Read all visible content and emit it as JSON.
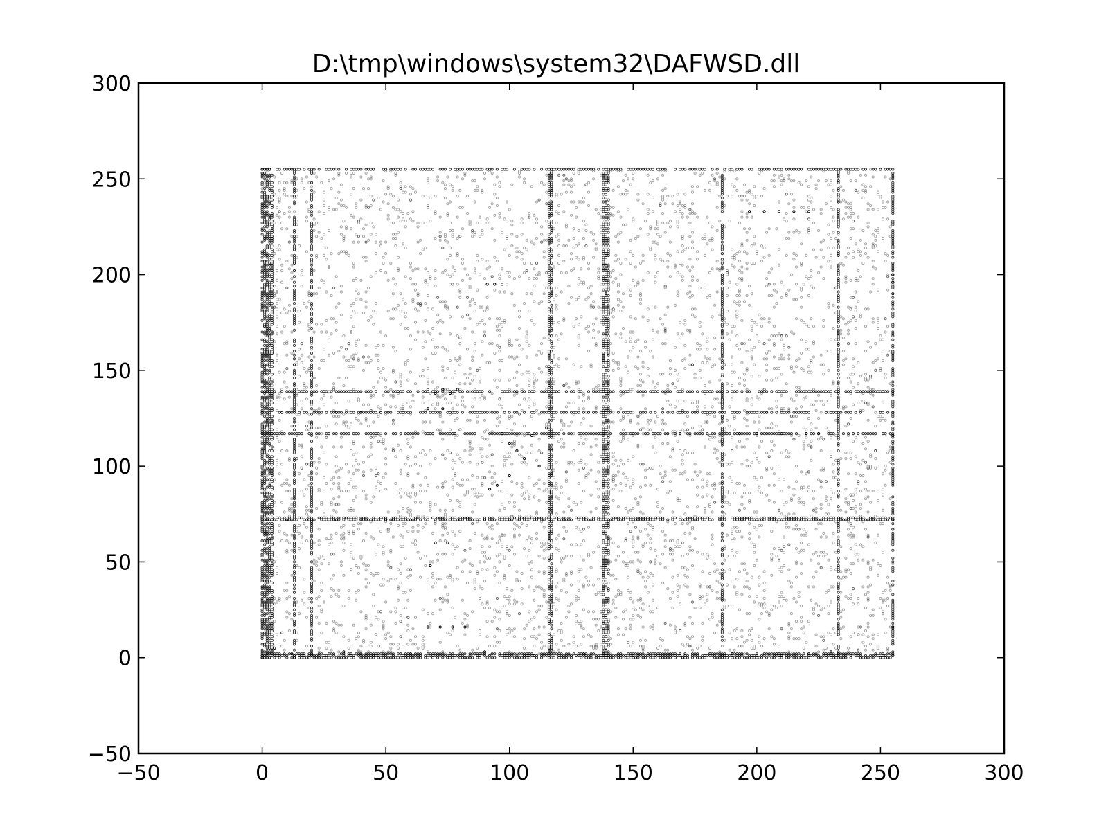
{
  "chart_data": {
    "type": "scatter",
    "title": "D:\\tmp\\windows\\system32\\DAFWSD.dll",
    "xlabel": "",
    "ylabel": "",
    "xlim": [
      -50,
      300
    ],
    "ylim": [
      -50,
      300
    ],
    "xticks": [
      -50,
      0,
      50,
      100,
      150,
      200,
      250,
      300
    ],
    "yticks": [
      -50,
      0,
      50,
      100,
      150,
      200,
      250,
      300
    ],
    "xtick_labels": [
      "−50",
      "0",
      "50",
      "100",
      "150",
      "200",
      "250",
      "300"
    ],
    "ytick_labels": [
      "−50",
      "0",
      "50",
      "100",
      "150",
      "200",
      "250",
      "300"
    ],
    "grid": false,
    "legend": "none",
    "marker_color": "#000000",
    "data_extent": {
      "x": [
        0,
        255
      ],
      "y": [
        0,
        255
      ]
    },
    "series": [
      {
        "name": "",
        "dense_rows_y": [
          0,
          1,
          2,
          72,
          73,
          128,
          139,
          117,
          255
        ],
        "dense_cols_x": [
          0,
          1,
          2,
          3,
          4,
          13,
          20,
          116,
          117,
          138,
          139,
          140,
          186,
          233,
          255
        ],
        "points": [
          [
            0,
            0
          ],
          [
            5,
            5
          ],
          [
            12,
            2
          ],
          [
            20,
            1
          ],
          [
            33,
            3
          ],
          [
            45,
            1
          ],
          [
            60,
            2
          ],
          [
            75,
            0
          ],
          [
            90,
            3
          ],
          [
            110,
            1
          ],
          [
            130,
            2
          ],
          [
            150,
            1
          ],
          [
            170,
            0
          ],
          [
            190,
            2
          ],
          [
            210,
            1
          ],
          [
            230,
            3
          ],
          [
            250,
            0
          ],
          [
            0,
            72
          ],
          [
            10,
            72
          ],
          [
            20,
            72
          ],
          [
            30,
            72
          ],
          [
            40,
            72
          ],
          [
            50,
            72
          ],
          [
            60,
            72
          ],
          [
            70,
            72
          ],
          [
            80,
            72
          ],
          [
            90,
            72
          ],
          [
            100,
            72
          ],
          [
            110,
            72
          ],
          [
            120,
            72
          ],
          [
            200,
            72
          ],
          [
            210,
            72
          ],
          [
            220,
            72
          ],
          [
            230,
            72
          ],
          [
            240,
            72
          ],
          [
            250,
            72
          ],
          [
            0,
            128
          ],
          [
            8,
            128
          ],
          [
            30,
            128
          ],
          [
            40,
            128
          ],
          [
            48,
            128
          ],
          [
            67,
            140
          ],
          [
            70,
            138
          ],
          [
            73,
            140
          ],
          [
            76,
            138
          ],
          [
            79,
            140
          ],
          [
            67,
            130
          ],
          [
            73,
            130
          ],
          [
            97,
            117
          ],
          [
            100,
            112
          ],
          [
            103,
            108
          ],
          [
            106,
            104
          ],
          [
            109,
            116
          ],
          [
            112,
            100
          ],
          [
            115,
            120
          ],
          [
            100,
            95
          ],
          [
            95,
            90
          ],
          [
            92,
            88
          ],
          [
            91,
            195
          ],
          [
            94,
            195
          ],
          [
            97,
            195
          ],
          [
            197,
            233
          ],
          [
            203,
            233
          ],
          [
            209,
            233
          ],
          [
            215,
            233
          ],
          [
            221,
            233
          ],
          [
            193,
            117
          ],
          [
            200,
            117
          ],
          [
            210,
            117
          ],
          [
            220,
            117
          ],
          [
            225,
            117
          ],
          [
            67,
            16
          ],
          [
            72,
            16
          ],
          [
            77,
            16
          ],
          [
            82,
            16
          ],
          [
            70,
            60
          ],
          [
            75,
            60
          ],
          [
            68,
            48
          ],
          [
            255,
            200
          ],
          [
            255,
            196
          ],
          [
            255,
            190
          ],
          [
            255,
            116
          ],
          [
            255,
            72
          ],
          [
            255,
            16
          ]
        ]
      }
    ]
  }
}
